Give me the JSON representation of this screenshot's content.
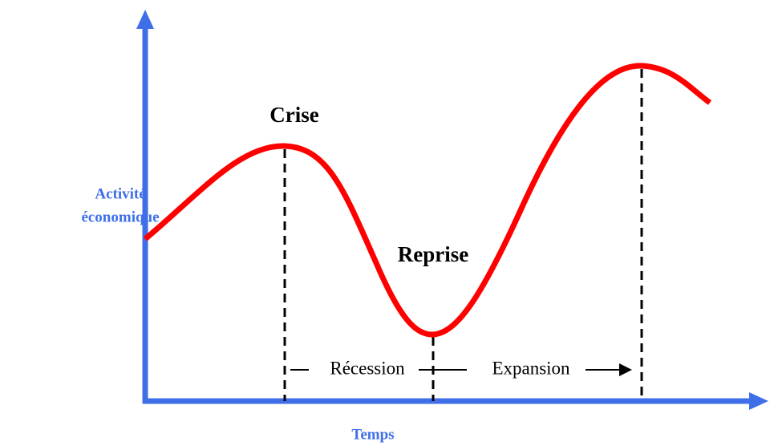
{
  "y_axis_label": [
    "Activité",
    "économique"
  ],
  "x_axis_label": "Temps",
  "points": [
    "Crise",
    "Reprise"
  ],
  "phases": [
    "Récession",
    "Expansion"
  ]
}
